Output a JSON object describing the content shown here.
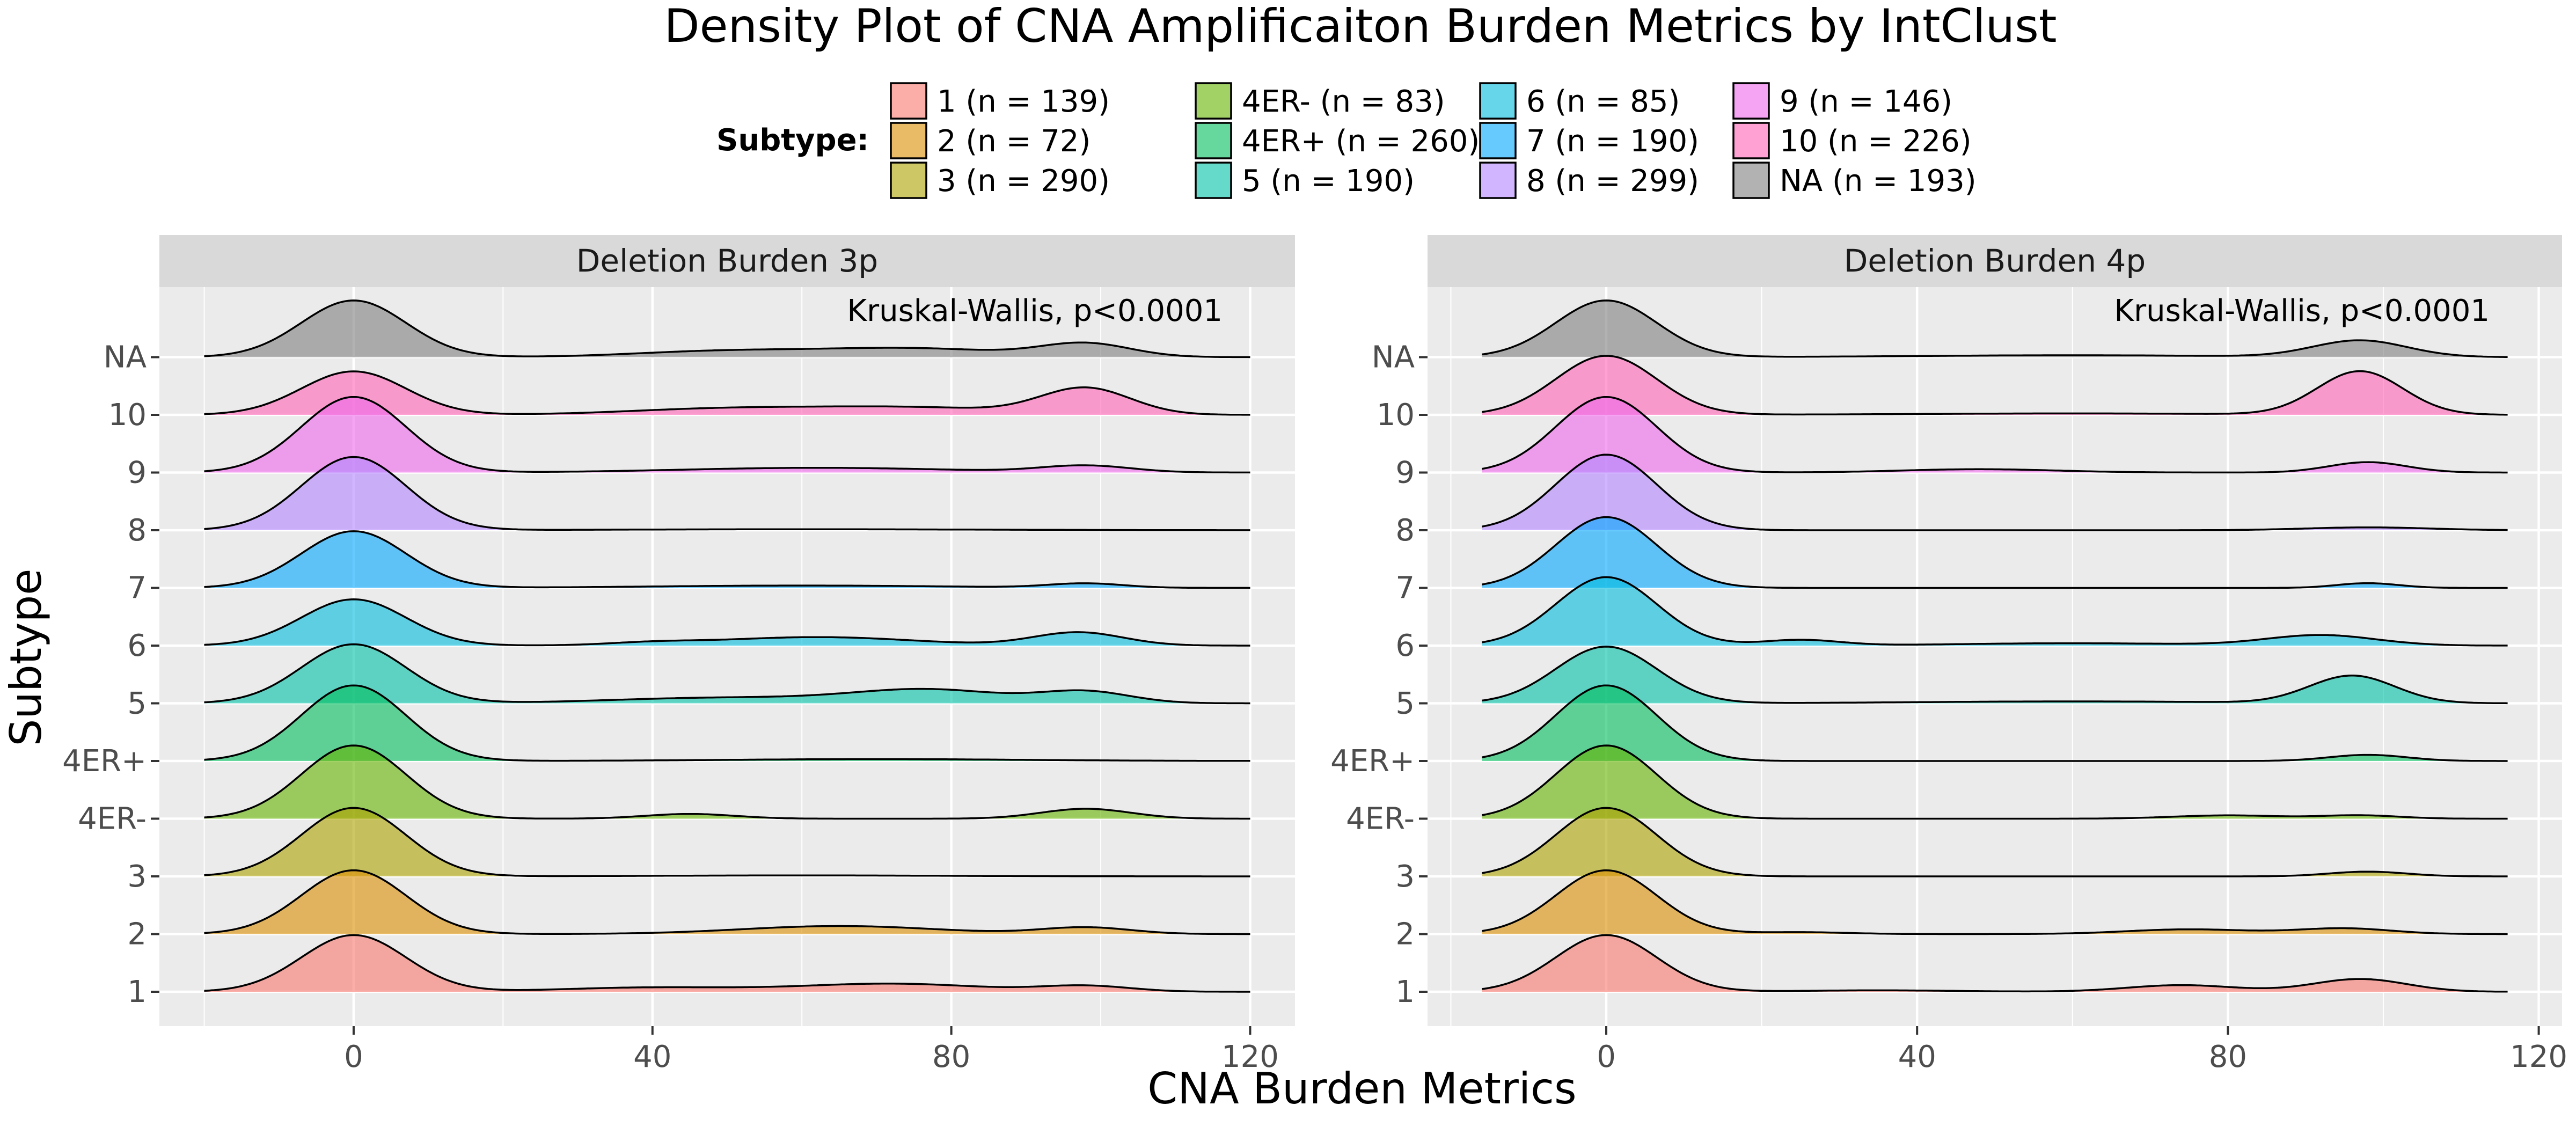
{
  "chart_data": {
    "type": "ridgeline-density",
    "title": "Density Plot of CNA Amplificaiton Burden Metrics by IntClust",
    "xlabel": "CNA Burden Metrics",
    "ylabel": "Subtype",
    "legend": {
      "title": "Subtype:",
      "placement": "top",
      "entries": [
        {
          "key": "1",
          "label": "1  (n = 139)",
          "color": "#F8766D"
        },
        {
          "key": "2",
          "label": "2  (n = 72)",
          "color": "#DB8E00"
        },
        {
          "key": "3",
          "label": "3  (n = 290)",
          "color": "#AEA200"
        },
        {
          "key": "4ER-",
          "label": "4ER-  (n = 83)",
          "color": "#64B200"
        },
        {
          "key": "4ER+",
          "label": "4ER+  (n = 260)",
          "color": "#00BD5C"
        },
        {
          "key": "5",
          "label": "5  (n = 190)",
          "color": "#00C1A7"
        },
        {
          "key": "6",
          "label": "6  (n = 85)",
          "color": "#00BADE"
        },
        {
          "key": "7",
          "label": "7  (n = 190)",
          "color": "#00A6FF"
        },
        {
          "key": "8",
          "label": "8  (n = 299)",
          "color": "#B385FF"
        },
        {
          "key": "9",
          "label": "9  (n = 146)",
          "color": "#EF67EB"
        },
        {
          "key": "10",
          "label": "10  (n = 226)",
          "color": "#FF63B6"
        },
        {
          "key": "NA",
          "label": "NA  (n = 193)",
          "color": "#7F7F7F"
        }
      ]
    },
    "categories": [
      "1",
      "2",
      "3",
      "4ER-",
      "4ER+",
      "5",
      "6",
      "7",
      "8",
      "9",
      "10",
      "NA"
    ],
    "x_ticks": [
      0,
      40,
      80,
      120
    ],
    "grid": true,
    "panels": [
      {
        "title": "Deletion Burden 3p",
        "annotation": "Kruskal-Wallis, p<0.0001",
        "xlim": [
          -26,
          126
        ],
        "x_range": [
          -20,
          120
        ],
        "series": [
          {
            "name": "1",
            "peaks": [
              [
                0,
                1.2,
                7
              ],
              [
                40,
                0.09,
                12
              ],
              [
                72,
                0.17,
                12
              ],
              [
                98,
                0.12,
                6
              ]
            ]
          },
          {
            "name": "2",
            "peaks": [
              [
                0,
                1.35,
                7
              ],
              [
                65,
                0.17,
                13
              ],
              [
                98,
                0.14,
                6
              ]
            ]
          },
          {
            "name": "3",
            "peaks": [
              [
                0,
                1.45,
                7
              ],
              [
                60,
                0.02,
                20
              ]
            ]
          },
          {
            "name": "4ER-",
            "peaks": [
              [
                0,
                1.55,
                7
              ],
              [
                45,
                0.1,
                6
              ],
              [
                98,
                0.21,
                6
              ]
            ]
          },
          {
            "name": "4ER+",
            "peaks": [
              [
                0,
                1.6,
                7
              ],
              [
                70,
                0.04,
                20
              ]
            ]
          },
          {
            "name": "5",
            "peaks": [
              [
                0,
                1.25,
                7
              ],
              [
                50,
                0.12,
                15
              ],
              [
                77,
                0.28,
                10
              ],
              [
                98,
                0.24,
                6
              ]
            ]
          },
          {
            "name": "6",
            "peaks": [
              [
                0,
                0.98,
                7
              ],
              [
                40,
                0.05,
                6
              ],
              [
                62,
                0.18,
                13
              ],
              [
                97,
                0.28,
                6
              ]
            ]
          },
          {
            "name": "7",
            "peaks": [
              [
                0,
                1.2,
                7
              ],
              [
                60,
                0.05,
                20
              ],
              [
                98,
                0.09,
                5
              ]
            ]
          },
          {
            "name": "8",
            "peaks": [
              [
                0,
                1.55,
                7
              ],
              [
                60,
                0.02,
                25
              ]
            ]
          },
          {
            "name": "9",
            "peaks": [
              [
                0,
                1.6,
                7
              ],
              [
                62,
                0.1,
                18
              ],
              [
                98,
                0.14,
                6
              ]
            ]
          },
          {
            "name": "10",
            "peaks": [
              [
                0,
                0.92,
                7
              ],
              [
                50,
                0.13,
                13
              ],
              [
                75,
                0.15,
                13
              ],
              [
                98,
                0.55,
                6
              ]
            ]
          },
          {
            "name": "NA",
            "peaks": [
              [
                0,
                1.2,
                7
              ],
              [
                50,
                0.13,
                12
              ],
              [
                75,
                0.18,
                12
              ],
              [
                98,
                0.28,
                6
              ]
            ]
          }
        ]
      },
      {
        "title": "Deletion Burden 4p",
        "annotation": "Kruskal-Wallis, p<0.0001",
        "xlim": [
          -23,
          123
        ],
        "x_range": [
          -16,
          116
        ],
        "series": [
          {
            "name": "1",
            "peaks": [
              [
                0,
                1.2,
                6.5
              ],
              [
                35,
                0.03,
                10
              ],
              [
                74,
                0.14,
                7
              ],
              [
                97,
                0.27,
                6
              ]
            ]
          },
          {
            "name": "2",
            "peaks": [
              [
                0,
                1.35,
                6.5
              ],
              [
                25,
                0.04,
                6
              ],
              [
                75,
                0.1,
                8
              ],
              [
                95,
                0.12,
                6
              ]
            ]
          },
          {
            "name": "3",
            "peaks": [
              [
                0,
                1.45,
                6.5
              ],
              [
                98,
                0.1,
                5
              ]
            ]
          },
          {
            "name": "4ER-",
            "peaks": [
              [
                0,
                1.55,
                6.5
              ],
              [
                80,
                0.07,
                7
              ],
              [
                97,
                0.07,
                5
              ]
            ]
          },
          {
            "name": "4ER+",
            "peaks": [
              [
                0,
                1.6,
                6.5
              ],
              [
                98,
                0.13,
                5
              ]
            ]
          },
          {
            "name": "5",
            "peaks": [
              [
                0,
                1.2,
                6.5
              ],
              [
                60,
                0.04,
                20
              ],
              [
                96,
                0.58,
                5.5
              ]
            ]
          },
          {
            "name": "6",
            "peaks": [
              [
                0,
                1.45,
                6.5
              ],
              [
                25,
                0.12,
                5
              ],
              [
                60,
                0.05,
                15
              ],
              [
                92,
                0.22,
                7
              ]
            ]
          },
          {
            "name": "7",
            "peaks": [
              [
                0,
                1.5,
                6.5
              ],
              [
                98,
                0.1,
                4
              ]
            ]
          },
          {
            "name": "8",
            "peaks": [
              [
                0,
                1.6,
                6.5
              ],
              [
                98,
                0.06,
                8
              ]
            ]
          },
          {
            "name": "9",
            "peaks": [
              [
                0,
                1.6,
                6.5
              ],
              [
                48,
                0.07,
                10
              ],
              [
                98,
                0.22,
                5
              ]
            ]
          },
          {
            "name": "10",
            "peaks": [
              [
                0,
                1.25,
                6.5
              ],
              [
                60,
                0.03,
                20
              ],
              [
                97,
                0.92,
                5.5
              ]
            ]
          },
          {
            "name": "NA",
            "peaks": [
              [
                0,
                1.2,
                6.5
              ],
              [
                60,
                0.04,
                20
              ],
              [
                97,
                0.35,
                6
              ]
            ]
          }
        ]
      }
    ]
  }
}
